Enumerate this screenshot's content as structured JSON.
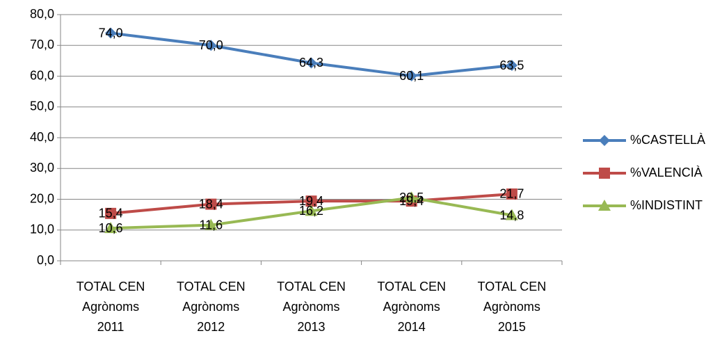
{
  "chart_data": {
    "type": "line",
    "categories": [
      "TOTAL CEN Agrònoms 2011",
      "TOTAL CEN Agrònoms 2012",
      "TOTAL CEN Agrònoms 2013",
      "TOTAL CEN Agrònoms 2014",
      "TOTAL CEN Agrònoms 2015"
    ],
    "series": [
      {
        "name": "%CASTELLÀ",
        "color": "#4a7ebb",
        "marker": "diamond",
        "values": [
          74.0,
          70.0,
          64.3,
          60.1,
          63.5
        ],
        "value_labels": [
          "74,0",
          "70,0",
          "64,3",
          "60,1",
          "63,5"
        ]
      },
      {
        "name": "%VALENCIÀ",
        "color": "#be4b48",
        "marker": "square",
        "values": [
          15.4,
          18.4,
          19.4,
          19.4,
          21.7
        ],
        "value_labels": [
          "15,4",
          "18,4",
          "19,4",
          "19,4",
          "21,7"
        ]
      },
      {
        "name": "%INDISTINT",
        "color": "#98b954",
        "marker": "triangle",
        "values": [
          10.6,
          11.6,
          16.2,
          20.5,
          14.8
        ],
        "value_labels": [
          "10,6",
          "11,6",
          "16,2",
          "20,5",
          "14,8"
        ]
      }
    ],
    "ylim": [
      0,
      80
    ],
    "yticks": [
      {
        "value": 0,
        "label": "0,0"
      },
      {
        "value": 10,
        "label": "10,0"
      },
      {
        "value": 20,
        "label": "20,0"
      },
      {
        "value": 30,
        "label": "30,0"
      },
      {
        "value": 40,
        "label": "40,0"
      },
      {
        "value": 50,
        "label": "50,0"
      },
      {
        "value": 60,
        "label": "60,0"
      },
      {
        "value": 70,
        "label": "70,0"
      },
      {
        "value": 80,
        "label": "80,0"
      }
    ],
    "grid": true,
    "legend": "right"
  }
}
